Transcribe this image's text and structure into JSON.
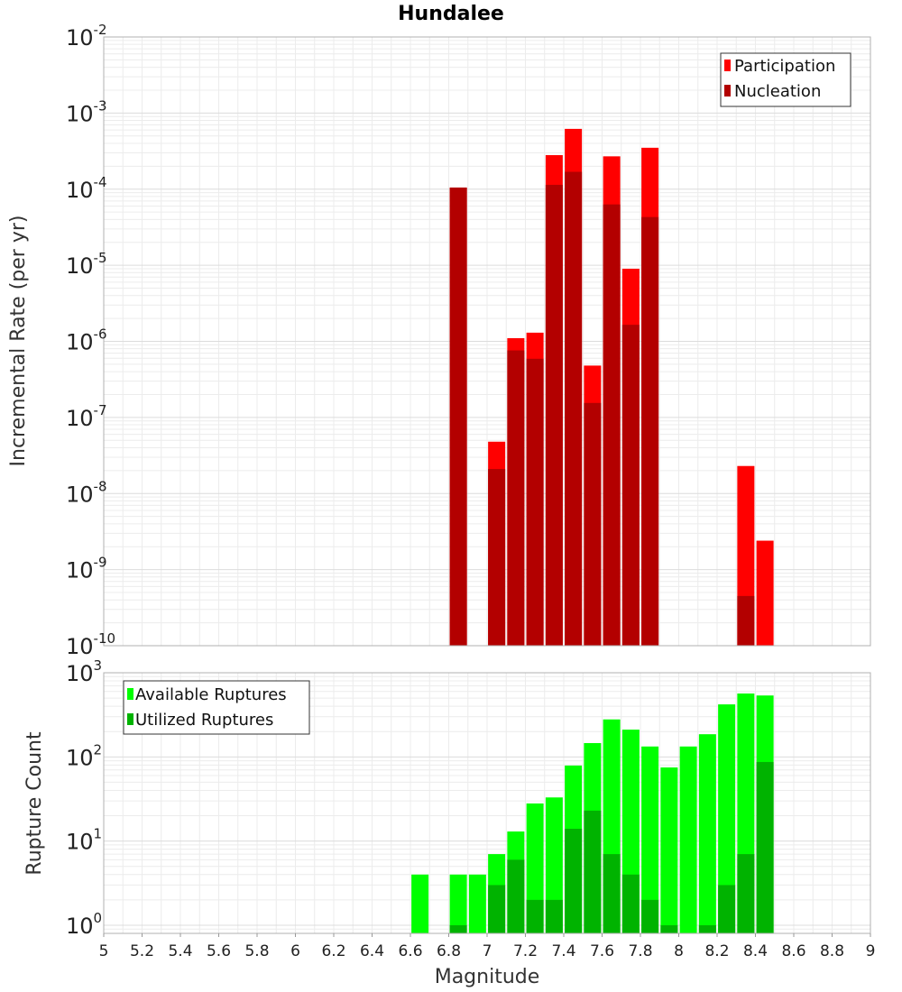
{
  "chart_data": [
    {
      "type": "bar",
      "title": "Hundalee",
      "xlabel": "",
      "ylabel": "Incremental Rate (per yr)",
      "yscale": "log",
      "ylim": [
        1e-10,
        0.01
      ],
      "xlim": [
        5,
        9
      ],
      "grid": true,
      "legend_position": "top-right",
      "series": [
        {
          "name": "Participation",
          "color": "#ff0000",
          "x": [
            6.85,
            7.05,
            7.15,
            7.25,
            7.35,
            7.45,
            7.55,
            7.65,
            7.75,
            7.85,
            8.35,
            8.45
          ],
          "values": [
            0.000105,
            4.8e-08,
            1.1e-06,
            1.3e-06,
            0.00028,
            0.00062,
            4.8e-07,
            0.00027,
            9e-06,
            0.00035,
            2.3e-08,
            2.4e-09
          ]
        },
        {
          "name": "Nucleation",
          "color": "#b30000",
          "x": [
            6.85,
            7.05,
            7.15,
            7.25,
            7.35,
            7.45,
            7.55,
            7.65,
            7.75,
            7.85,
            8.35
          ],
          "values": [
            0.000105,
            2.1e-08,
            7.6e-07,
            5.9e-07,
            0.000114,
            0.000169,
            1.55e-07,
            6.3e-05,
            1.65e-06,
            4.3e-05,
            4.5e-10
          ]
        }
      ]
    },
    {
      "type": "bar",
      "title": "",
      "xlabel": "Magnitude",
      "ylabel": "Rupture Count",
      "yscale": "log",
      "ylim": [
        0.8,
        1000
      ],
      "xlim": [
        5,
        9
      ],
      "grid": true,
      "legend_position": "top-left",
      "series": [
        {
          "name": "Available Ruptures",
          "color": "#00ff00",
          "x": [
            6.65,
            6.85,
            6.95,
            7.05,
            7.15,
            7.25,
            7.35,
            7.45,
            7.55,
            7.65,
            7.75,
            7.85,
            7.95,
            8.05,
            8.15,
            8.25,
            8.35,
            8.45
          ],
          "values": [
            4,
            4,
            4,
            7,
            13,
            28,
            33,
            79,
            146,
            279,
            211,
            133,
            75,
            133,
            186,
            421,
            567,
            537
          ]
        },
        {
          "name": "Utilized Ruptures",
          "color": "#00b300",
          "x": [
            6.85,
            7.05,
            7.15,
            7.25,
            7.35,
            7.45,
            7.55,
            7.65,
            7.75,
            7.85,
            7.95,
            8.15,
            8.25,
            8.35,
            8.45
          ],
          "values": [
            1,
            3,
            6,
            2,
            2,
            14,
            23,
            7,
            4,
            2,
            1,
            1,
            3,
            7,
            87
          ]
        }
      ]
    }
  ],
  "axes": {
    "top_y_ticks": [
      {
        "base": "10",
        "exp": "-2"
      },
      {
        "base": "10",
        "exp": "-3"
      },
      {
        "base": "10",
        "exp": "-4"
      },
      {
        "base": "10",
        "exp": "-5"
      },
      {
        "base": "10",
        "exp": "-6"
      },
      {
        "base": "10",
        "exp": "-7"
      },
      {
        "base": "10",
        "exp": "-8"
      },
      {
        "base": "10",
        "exp": "-9"
      },
      {
        "base": "10",
        "exp": "-10"
      }
    ],
    "bottom_y_ticks": [
      {
        "base": "10",
        "exp": "3"
      },
      {
        "base": "10",
        "exp": "2"
      },
      {
        "base": "10",
        "exp": "1"
      },
      {
        "base": "10",
        "exp": "0"
      }
    ],
    "x_ticks": [
      "5",
      "5.2",
      "5.4",
      "5.6",
      "5.8",
      "6",
      "6.2",
      "6.4",
      "6.6",
      "6.8",
      "7",
      "7.2",
      "7.4",
      "7.6",
      "7.8",
      "8",
      "8.2",
      "8.4",
      "8.6",
      "8.8",
      "9"
    ]
  }
}
